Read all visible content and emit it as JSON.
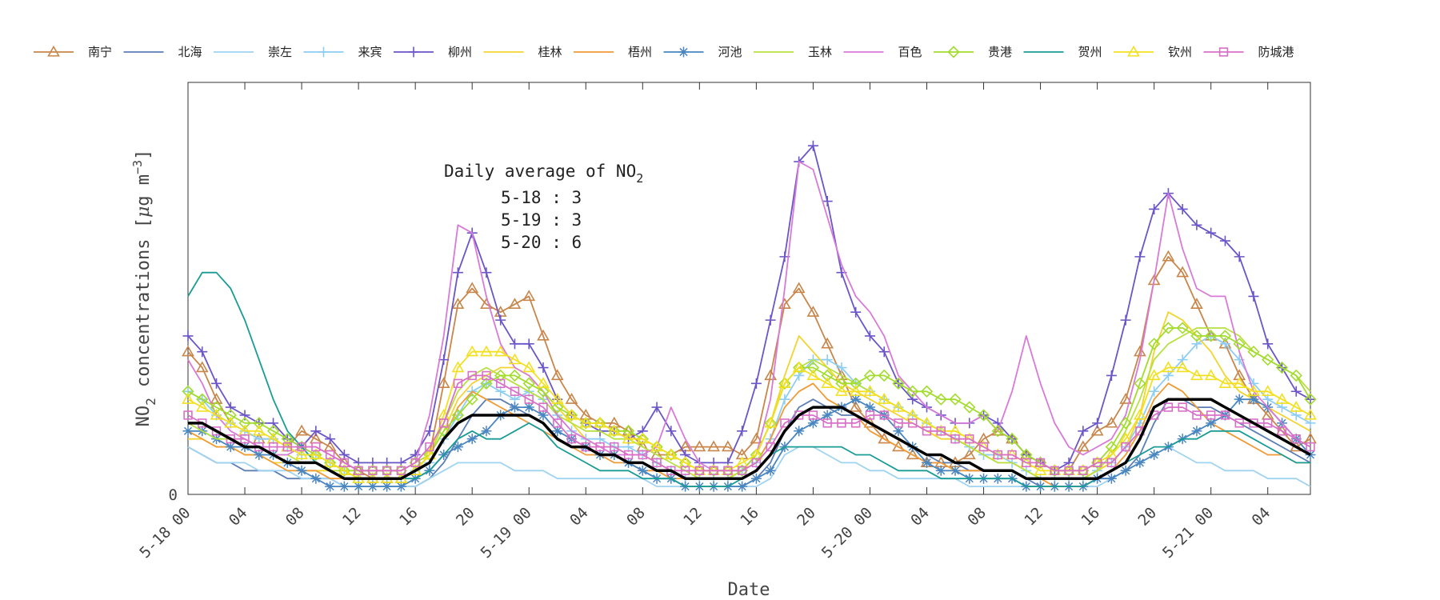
{
  "chart_data": {
    "type": "line",
    "xlabel": "Date",
    "ylabel": "NO",
    "ylabel_sub": "2",
    "ylabel_rest": " concentrations [",
    "ylabel_mu": "μ",
    "ylabel_g": "g m",
    "ylabel_sup": "−3",
    "ylabel_close": "]",
    "y_tick_zero": "0",
    "xlim": [
      0,
      79
    ],
    "ylim": [
      0,
      52
    ],
    "x_ticks": [
      {
        "x": 0,
        "label": "5-18 00"
      },
      {
        "x": 4,
        "label": "04"
      },
      {
        "x": 8,
        "label": "08"
      },
      {
        "x": 12,
        "label": "12"
      },
      {
        "x": 16,
        "label": "16"
      },
      {
        "x": 20,
        "label": "20"
      },
      {
        "x": 24,
        "label": "5-19 00"
      },
      {
        "x": 28,
        "label": "04"
      },
      {
        "x": 32,
        "label": "08"
      },
      {
        "x": 36,
        "label": "12"
      },
      {
        "x": 40,
        "label": "16"
      },
      {
        "x": 44,
        "label": "20"
      },
      {
        "x": 48,
        "label": "5-20 00"
      },
      {
        "x": 52,
        "label": "04"
      },
      {
        "x": 56,
        "label": "08"
      },
      {
        "x": 60,
        "label": "12"
      },
      {
        "x": 64,
        "label": "16"
      },
      {
        "x": 68,
        "label": "20"
      },
      {
        "x": 72,
        "label": "5-21 00"
      },
      {
        "x": 76,
        "label": "04"
      }
    ],
    "annotation": {
      "title_main": "Daily average of NO",
      "title_sub": "2",
      "lines": [
        "5-18 : 3",
        "5-19 : 3",
        "5-20 : 6"
      ]
    },
    "series": [
      {
        "name": "南宁",
        "color": "#c8864a",
        "marker": "triangle",
        "values": [
          18,
          16,
          12,
          9,
          8,
          7,
          7,
          6,
          8,
          7,
          6,
          4,
          3,
          2,
          2,
          2,
          3,
          5,
          14,
          24,
          26,
          24,
          23,
          24,
          25,
          20,
          15,
          12,
          10,
          9,
          9,
          8,
          6,
          5,
          5,
          6,
          6,
          6,
          6,
          5,
          7,
          15,
          24,
          26,
          23,
          19,
          15,
          11,
          9,
          7,
          6,
          5,
          4,
          4,
          4,
          5,
          7,
          8,
          7,
          5,
          4,
          3,
          3,
          6,
          8,
          9,
          12,
          18,
          27,
          30,
          28,
          24,
          20,
          19,
          15,
          12,
          10,
          8,
          6,
          7
        ]
      },
      {
        "name": "北海",
        "color": "#5b7fb5",
        "marker": "none",
        "values": [
          6,
          5,
          4,
          4,
          3,
          3,
          3,
          2,
          2,
          2,
          2,
          1,
          1,
          1,
          1,
          1,
          1,
          2,
          4,
          7,
          10,
          12,
          12,
          11,
          10,
          9,
          7,
          6,
          6,
          5,
          5,
          4,
          3,
          2,
          2,
          1,
          1,
          1,
          1,
          1,
          2,
          4,
          8,
          11,
          12,
          11,
          10,
          10,
          9,
          8,
          7,
          6,
          5,
          4,
          4,
          3,
          3,
          3,
          3,
          2,
          1,
          1,
          1,
          1,
          2,
          2,
          3,
          5,
          9,
          12,
          12,
          11,
          11,
          10,
          9,
          8,
          7,
          6,
          5,
          4
        ]
      },
      {
        "name": "崇左",
        "color": "#9fd3f2",
        "marker": "none",
        "values": [
          6,
          5,
          4,
          4,
          4,
          3,
          3,
          3,
          2,
          2,
          2,
          1,
          1,
          1,
          1,
          1,
          1,
          2,
          3,
          4,
          4,
          4,
          4,
          3,
          3,
          3,
          2,
          2,
          2,
          2,
          2,
          2,
          2,
          1,
          1,
          1,
          1,
          1,
          1,
          1,
          1,
          2,
          5,
          6,
          6,
          5,
          4,
          4,
          3,
          3,
          2,
          2,
          2,
          2,
          2,
          1,
          1,
          1,
          1,
          1,
          1,
          1,
          1,
          1,
          1,
          2,
          3,
          4,
          5,
          6,
          5,
          4,
          4,
          3,
          3,
          3,
          2,
          2,
          2,
          1
        ]
      },
      {
        "name": "来宾",
        "color": "#8ecdf3",
        "marker": "plus",
        "values": [
          13,
          12,
          10,
          9,
          8,
          7,
          7,
          6,
          5,
          5,
          4,
          3,
          2,
          2,
          2,
          2,
          3,
          4,
          7,
          10,
          13,
          14,
          13,
          12,
          13,
          12,
          10,
          8,
          7,
          7,
          6,
          6,
          5,
          4,
          3,
          2,
          2,
          2,
          2,
          3,
          4,
          7,
          12,
          15,
          17,
          17,
          16,
          14,
          13,
          12,
          11,
          10,
          9,
          8,
          7,
          6,
          5,
          5,
          4,
          3,
          2,
          2,
          2,
          2,
          3,
          4,
          6,
          9,
          13,
          15,
          17,
          19,
          20,
          19,
          17,
          14,
          12,
          11,
          10,
          9
        ]
      },
      {
        "name": "柳州",
        "color": "#6b55c8",
        "marker": "plus",
        "values": [
          20,
          18,
          14,
          11,
          10,
          9,
          9,
          7,
          6,
          8,
          7,
          5,
          4,
          4,
          4,
          4,
          5,
          8,
          17,
          28,
          33,
          28,
          22,
          19,
          19,
          16,
          12,
          10,
          9,
          8,
          8,
          7,
          8,
          11,
          8,
          5,
          4,
          4,
          4,
          8,
          14,
          22,
          30,
          42,
          44,
          37,
          28,
          23,
          20,
          18,
          14,
          12,
          11,
          10,
          9,
          9,
          10,
          9,
          7,
          5,
          4,
          3,
          4,
          8,
          9,
          15,
          22,
          30,
          36,
          38,
          36,
          34,
          33,
          32,
          30,
          25,
          19,
          16,
          13,
          12
        ]
      },
      {
        "name": "桂林",
        "color": "#f2d430",
        "marker": "none",
        "values": [
          7,
          7,
          6,
          6,
          5,
          5,
          4,
          4,
          3,
          3,
          3,
          2,
          2,
          2,
          2,
          2,
          3,
          5,
          8,
          12,
          14,
          15,
          16,
          16,
          15,
          13,
          11,
          9,
          7,
          6,
          6,
          5,
          5,
          4,
          3,
          2,
          2,
          2,
          2,
          3,
          5,
          9,
          15,
          20,
          18,
          16,
          14,
          13,
          12,
          11,
          10,
          9,
          8,
          7,
          7,
          6,
          5,
          4,
          4,
          3,
          2,
          2,
          2,
          2,
          3,
          4,
          6,
          10,
          18,
          23,
          22,
          20,
          18,
          15,
          13,
          12,
          11,
          10,
          9,
          8
        ]
      },
      {
        "name": "梧州",
        "color": "#f09a34",
        "marker": "none",
        "values": [
          8,
          7,
          6,
          6,
          5,
          5,
          4,
          3,
          3,
          3,
          2,
          2,
          2,
          2,
          2,
          2,
          3,
          4,
          7,
          11,
          13,
          12,
          11,
          10,
          9,
          8,
          7,
          6,
          5,
          5,
          4,
          4,
          3,
          3,
          2,
          2,
          2,
          2,
          2,
          3,
          4,
          7,
          11,
          13,
          14,
          12,
          11,
          10,
          8,
          7,
          6,
          5,
          4,
          4,
          3,
          3,
          3,
          3,
          3,
          2,
          2,
          1,
          1,
          1,
          2,
          3,
          5,
          8,
          12,
          14,
          13,
          11,
          9,
          8,
          7,
          6,
          5,
          5,
          4,
          4
        ]
      },
      {
        "name": "河池",
        "color": "#4a86c0",
        "marker": "star",
        "values": [
          8,
          8,
          7,
          6,
          6,
          5,
          5,
          4,
          3,
          2,
          1,
          1,
          1,
          1,
          1,
          1,
          2,
          3,
          5,
          6,
          7,
          8,
          10,
          11,
          11,
          10,
          8,
          7,
          6,
          5,
          5,
          4,
          3,
          2,
          2,
          1,
          1,
          1,
          1,
          1,
          2,
          3,
          6,
          8,
          9,
          10,
          11,
          12,
          11,
          10,
          8,
          6,
          4,
          3,
          3,
          2,
          2,
          2,
          2,
          1,
          1,
          1,
          1,
          1,
          2,
          2,
          3,
          4,
          5,
          6,
          7,
          8,
          9,
          10,
          12,
          12,
          11,
          9,
          7,
          5
        ]
      },
      {
        "name": "玉林",
        "color": "#b8e040",
        "marker": "none",
        "values": [
          9,
          8,
          7,
          7,
          6,
          6,
          5,
          5,
          4,
          4,
          3,
          3,
          2,
          2,
          2,
          2,
          3,
          5,
          9,
          13,
          15,
          16,
          15,
          14,
          13,
          12,
          10,
          9,
          8,
          8,
          7,
          7,
          6,
          5,
          4,
          3,
          2,
          2,
          2,
          3,
          5,
          9,
          14,
          16,
          17,
          16,
          15,
          14,
          13,
          12,
          11,
          10,
          9,
          8,
          7,
          6,
          5,
          4,
          4,
          3,
          2,
          2,
          2,
          2,
          3,
          5,
          8,
          12,
          17,
          19,
          20,
          21,
          21,
          21,
          20,
          18,
          17,
          16,
          15,
          13
        ]
      },
      {
        "name": "百色",
        "color": "#d87ad8",
        "marker": "none",
        "values": [
          17,
          14,
          10,
          8,
          7,
          6,
          5,
          5,
          6,
          6,
          5,
          4,
          3,
          3,
          3,
          3,
          4,
          10,
          20,
          34,
          33,
          25,
          19,
          16,
          15,
          13,
          10,
          8,
          7,
          6,
          5,
          5,
          5,
          6,
          11,
          7,
          4,
          3,
          3,
          3,
          5,
          12,
          26,
          42,
          41,
          35,
          29,
          25,
          23,
          20,
          15,
          13,
          11,
          10,
          9,
          9,
          10,
          8,
          13,
          20,
          14,
          9,
          6,
          5,
          6,
          7,
          10,
          17,
          27,
          38,
          31,
          26,
          25,
          25,
          18,
          13,
          11,
          9,
          7,
          6
        ]
      },
      {
        "name": "贵港",
        "color": "#a2dc2c",
        "marker": "diamond",
        "values": [
          13,
          12,
          11,
          10,
          9,
          9,
          8,
          7,
          6,
          5,
          4,
          3,
          3,
          3,
          3,
          3,
          4,
          5,
          8,
          10,
          12,
          14,
          15,
          15,
          14,
          13,
          11,
          10,
          9,
          9,
          8,
          8,
          7,
          6,
          5,
          4,
          3,
          3,
          3,
          3,
          5,
          9,
          14,
          16,
          16,
          15,
          14,
          14,
          15,
          15,
          14,
          13,
          13,
          12,
          12,
          11,
          10,
          8,
          7,
          5,
          4,
          3,
          3,
          3,
          4,
          6,
          9,
          14,
          19,
          21,
          21,
          20,
          20,
          20,
          19,
          18,
          17,
          16,
          15,
          12
        ]
      },
      {
        "name": "贺州",
        "color": "#1a9c96",
        "marker": "none",
        "values": [
          25,
          28,
          28,
          26,
          22,
          17,
          12,
          8,
          6,
          4,
          3,
          2,
          2,
          2,
          2,
          2,
          2,
          3,
          5,
          7,
          8,
          7,
          7,
          8,
          9,
          8,
          6,
          5,
          4,
          3,
          3,
          3,
          2,
          2,
          2,
          1,
          1,
          1,
          1,
          2,
          3,
          5,
          6,
          6,
          6,
          6,
          6,
          5,
          5,
          4,
          3,
          3,
          3,
          2,
          2,
          2,
          2,
          2,
          2,
          1,
          1,
          1,
          1,
          1,
          2,
          3,
          4,
          5,
          6,
          6,
          7,
          7,
          8,
          8,
          8,
          7,
          6,
          5,
          4,
          4
        ]
      },
      {
        "name": "钦州",
        "color": "#f2e020",
        "marker": "triangle",
        "values": [
          12,
          11,
          10,
          9,
          8,
          8,
          7,
          6,
          5,
          5,
          4,
          3,
          2,
          2,
          2,
          2,
          3,
          5,
          10,
          16,
          18,
          18,
          18,
          17,
          16,
          14,
          12,
          10,
          9,
          9,
          8,
          7,
          7,
          6,
          5,
          4,
          3,
          3,
          3,
          4,
          5,
          9,
          14,
          16,
          15,
          14,
          13,
          13,
          13,
          12,
          11,
          10,
          9,
          8,
          8,
          7,
          6,
          5,
          5,
          4,
          3,
          3,
          3,
          3,
          4,
          5,
          7,
          10,
          15,
          16,
          16,
          15,
          15,
          14,
          14,
          13,
          13,
          12,
          11,
          10
        ]
      },
      {
        "name": "防城港",
        "color": "#d870c8",
        "marker": "square",
        "values": [
          10,
          9,
          8,
          7,
          7,
          6,
          6,
          6,
          6,
          6,
          5,
          4,
          3,
          3,
          3,
          3,
          4,
          6,
          9,
          14,
          15,
          15,
          14,
          13,
          12,
          11,
          9,
          7,
          6,
          6,
          6,
          5,
          5,
          4,
          3,
          3,
          3,
          3,
          3,
          3,
          4,
          6,
          9,
          10,
          10,
          9,
          9,
          9,
          10,
          10,
          9,
          9,
          8,
          8,
          7,
          7,
          6,
          5,
          5,
          4,
          4,
          3,
          3,
          3,
          4,
          4,
          6,
          8,
          10,
          11,
          11,
          10,
          10,
          10,
          9,
          9,
          9,
          8,
          7,
          6
        ]
      },
      {
        "name": "",
        "color": "#000000",
        "marker": "none",
        "bold": true,
        "values": [
          9,
          9,
          8,
          7,
          6,
          6,
          5,
          4,
          4,
          4,
          3,
          2,
          2,
          2,
          2,
          2,
          3,
          4,
          7,
          9,
          10,
          10,
          10,
          10,
          10,
          9,
          7,
          6,
          6,
          5,
          5,
          4,
          4,
          3,
          3,
          2,
          2,
          2,
          2,
          2,
          3,
          5,
          8,
          10,
          11,
          11,
          11,
          10,
          9,
          8,
          7,
          6,
          5,
          5,
          4,
          4,
          3,
          3,
          3,
          2,
          2,
          2,
          2,
          2,
          2,
          3,
          4,
          7,
          11,
          12,
          12,
          12,
          12,
          11,
          10,
          9,
          8,
          7,
          6,
          5
        ]
      }
    ]
  }
}
